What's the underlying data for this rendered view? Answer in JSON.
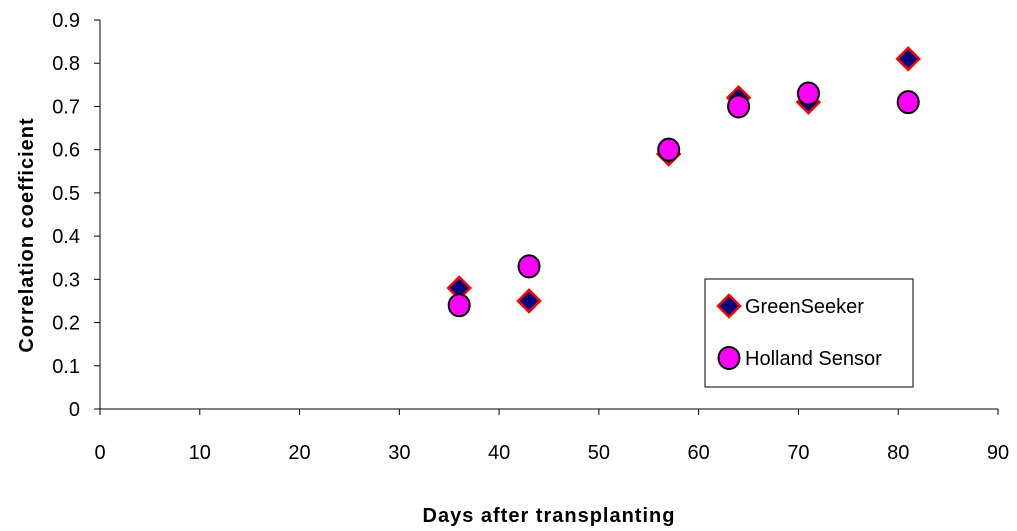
{
  "chart_data": {
    "type": "scatter",
    "title": "",
    "xlabel": "Days after transplanting",
    "ylabel": "Correlation coefficient",
    "xlim": [
      0,
      90
    ],
    "ylim": [
      0,
      0.9
    ],
    "xticks": [
      "0",
      "10",
      "20",
      "30",
      "40",
      "50",
      "60",
      "70",
      "80",
      "90"
    ],
    "yticks": [
      "0",
      "0.1",
      "0.2",
      "0.3",
      "0.4",
      "0.5",
      "0.6",
      "0.7",
      "0.8",
      "0.9"
    ],
    "grid": false,
    "legend_position": "right",
    "series": [
      {
        "name": "GreenSeeker",
        "marker": "diamond",
        "fill_color": "#000080",
        "edge_color": "#ff0000",
        "points": [
          {
            "x": 36,
            "y": 0.28
          },
          {
            "x": 43,
            "y": 0.25
          },
          {
            "x": 57,
            "y": 0.59
          },
          {
            "x": 64,
            "y": 0.72
          },
          {
            "x": 71,
            "y": 0.71
          },
          {
            "x": 81,
            "y": 0.81
          }
        ]
      },
      {
        "name": "Holland Sensor",
        "marker": "circle",
        "fill_color": "#ff00ff",
        "edge_color": "#000000",
        "points": [
          {
            "x": 36,
            "y": 0.24
          },
          {
            "x": 43,
            "y": 0.33
          },
          {
            "x": 57,
            "y": 0.6
          },
          {
            "x": 64,
            "y": 0.7
          },
          {
            "x": 71,
            "y": 0.73
          },
          {
            "x": 81,
            "y": 0.71
          }
        ]
      }
    ]
  }
}
